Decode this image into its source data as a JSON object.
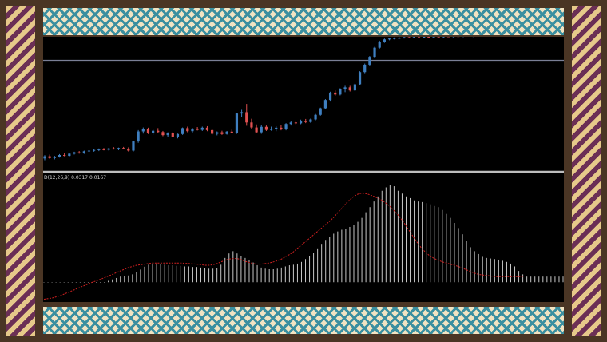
{
  "indicator": {
    "label_prefix": "D(",
    "params": "12,26,9",
    "macd_value": "0.0317",
    "signal_value": "0.0167"
  },
  "chart_data": {
    "type": "candlestick",
    "price": {
      "up_color": "#3f7fc0",
      "down_color": "#e05050",
      "candles": [
        [
          100,
          101.5,
          99.2,
          101
        ],
        [
          101,
          101.8,
          99.8,
          100.2
        ],
        [
          100.2,
          101.2,
          99.6,
          100.8
        ],
        [
          100.8,
          102,
          100.4,
          101.6
        ],
        [
          101.6,
          102.4,
          101,
          101.2
        ],
        [
          101.2,
          102.6,
          100.9,
          102.2
        ],
        [
          102.2,
          103.1,
          101.8,
          102.8
        ],
        [
          102.8,
          103.4,
          102.2,
          102.5
        ],
        [
          102.5,
          103.6,
          102.1,
          103.3
        ],
        [
          103.3,
          104,
          102.9,
          103.6
        ],
        [
          103.6,
          104.3,
          103.1,
          103.9
        ],
        [
          103.9,
          104.6,
          103.4,
          104.2
        ],
        [
          104.2,
          104.8,
          103.7,
          104
        ],
        [
          104,
          104.9,
          103.6,
          104.6
        ],
        [
          104.6,
          105.2,
          104.1,
          104.4
        ],
        [
          104.4,
          105,
          103.8,
          104.8
        ],
        [
          104.8,
          105.3,
          104.2,
          104.5
        ],
        [
          104.5,
          105.1,
          103.2,
          103.6
        ],
        [
          103.6,
          108.2,
          103.2,
          107.8
        ],
        [
          107.8,
          113,
          107.2,
          112.4
        ],
        [
          112.4,
          114.2,
          111.4,
          113.5
        ],
        [
          113.5,
          114.1,
          111.2,
          111.8
        ],
        [
          111.8,
          113.2,
          110.9,
          112.7
        ],
        [
          112.7,
          113.9,
          111.7,
          112.1
        ],
        [
          112.1,
          112.6,
          110.2,
          110.7
        ],
        [
          110.7,
          112,
          109.9,
          111.5
        ],
        [
          111.5,
          112.1,
          109.7,
          110
        ],
        [
          110,
          111.4,
          109.2,
          111.2
        ],
        [
          111.2,
          114.2,
          110.8,
          113.9
        ],
        [
          113.9,
          114.6,
          112,
          112.5
        ],
        [
          112.5,
          114,
          111.9,
          113.7
        ],
        [
          113.7,
          114.4,
          112.8,
          113.1
        ],
        [
          113.1,
          114.6,
          112.6,
          114.1
        ],
        [
          114.1,
          114.8,
          112.5,
          113
        ],
        [
          113,
          113.4,
          110.9,
          111.3
        ],
        [
          111.3,
          112.4,
          110.6,
          112
        ],
        [
          112,
          112.7,
          110.8,
          111.2
        ],
        [
          111.2,
          112.6,
          110.9,
          112.3
        ],
        [
          112.3,
          113.2,
          111.5,
          111.7
        ],
        [
          111.7,
          121,
          111.3,
          120.6
        ],
        [
          120.6,
          122.3,
          119.1,
          121.2
        ],
        [
          121.2,
          125,
          115,
          116.5
        ],
        [
          116.5,
          118.2,
          113.5,
          114.2
        ],
        [
          114.2,
          115.6,
          111.5,
          112
        ],
        [
          112,
          115.3,
          111.3,
          114.5
        ],
        [
          114.5,
          115.1,
          112.6,
          113.1
        ],
        [
          113.1,
          114.6,
          112.7,
          113.5
        ],
        [
          113.5,
          114.8,
          112.5,
          114.1
        ],
        [
          114.1,
          115.2,
          112.9,
          113.3
        ],
        [
          113.3,
          116.2,
          112.9,
          115.8
        ],
        [
          115.8,
          117.2,
          115.1,
          116.5
        ],
        [
          116.5,
          117.4,
          115.5,
          116.1
        ],
        [
          116.1,
          117.8,
          115.7,
          117.3
        ],
        [
          117.3,
          118.1,
          116.2,
          116.7
        ],
        [
          116.7,
          118.3,
          116.3,
          117.9
        ],
        [
          117.9,
          120.4,
          117.5,
          120
        ],
        [
          120,
          123.3,
          119.6,
          123
        ],
        [
          123,
          127.2,
          122.6,
          126.8
        ],
        [
          126.8,
          130.6,
          126.1,
          130.2
        ],
        [
          130.2,
          131.2,
          128.7,
          129.3
        ],
        [
          129.3,
          132.2,
          128.9,
          131.8
        ],
        [
          131.8,
          133.3,
          130.4,
          132.6
        ],
        [
          132.6,
          133.3,
          130.7,
          131.2
        ],
        [
          131.2,
          134.4,
          130.9,
          134
        ],
        [
          134,
          140,
          133.6,
          139.6
        ],
        [
          139.6,
          143.5,
          139.1,
          143
        ],
        [
          143,
          147,
          142.6,
          146.6
        ],
        [
          146.6,
          151.2,
          146.2,
          150.8
        ],
        [
          150.8,
          154,
          150.4,
          153.6
        ],
        [
          153.6,
          155,
          153,
          154.6
        ],
        [
          154.6,
          155.3,
          154.2,
          155
        ],
        [
          155,
          155.5,
          154.6,
          155.2
        ],
        [
          155.2,
          155.6,
          154.9,
          155.3
        ],
        [
          155.3,
          155.9,
          155,
          155.6
        ],
        [
          155.6,
          156,
          155.3,
          155.4
        ],
        [
          155.4,
          155.9,
          155.1,
          155.7
        ],
        [
          155.7,
          156.1,
          155.4,
          155.5
        ],
        [
          155.5,
          156,
          155.2,
          155.8
        ],
        [
          155.8,
          156.2,
          155.5,
          155.6
        ],
        [
          155.6,
          156.1,
          155.3,
          155.9
        ],
        [
          155.9,
          156.3,
          155.6,
          155.7
        ],
        [
          155.7,
          156.2,
          155.4,
          156
        ],
        [
          156,
          156.4,
          155.7,
          155.8
        ],
        [
          155.8,
          156.3,
          155.5,
          156.1
        ],
        [
          156.1,
          156.5,
          155.8,
          155.9
        ],
        [
          155.9,
          156.4,
          155.6,
          156.2
        ],
        [
          156.2,
          156.6,
          155.9,
          156
        ],
        [
          156,
          156.5,
          155.7,
          156.3
        ],
        [
          156.3,
          156.7,
          156,
          156.1
        ],
        [
          156.1,
          156.6,
          155.8,
          156.4
        ],
        [
          156.4,
          156.8,
          156.1,
          156.2
        ],
        [
          156.2,
          156.7,
          155.9,
          156.5
        ],
        [
          156.5,
          156.9,
          156.2,
          156.3
        ],
        [
          156.3,
          156.8,
          156,
          156.6
        ],
        [
          156.6,
          157,
          156.3,
          156.4
        ],
        [
          156.4,
          156.9,
          156.1,
          156.7
        ],
        [
          156.7,
          157.1,
          156.4,
          156.5
        ],
        [
          156.5,
          157,
          156.2,
          156.8
        ]
      ],
      "horizontal_line": 145,
      "ylim": [
        95,
        155.8
      ]
    },
    "macd": {
      "histogram_color": "#c8c8c8",
      "signal_color": "#d02020",
      "histogram": [
        0,
        0,
        0,
        0,
        0,
        0,
        0,
        0,
        0,
        0,
        0,
        0,
        0,
        0,
        0,
        0,
        0.05,
        0.1,
        0.15,
        0.2,
        0.22,
        0.24,
        0.28,
        0.35,
        0.45,
        0.55,
        0.62,
        0.66,
        0.66,
        0.64,
        0.62,
        0.6,
        0.6,
        0.58,
        0.58,
        0.56,
        0.56,
        0.54,
        0.54,
        0.52,
        0.5,
        0.48,
        0.48,
        0.5,
        0.62,
        0.86,
        1.02,
        1.1,
        1.02,
        0.92,
        0.86,
        0.8,
        0.7,
        0.6,
        0.52,
        0.48,
        0.46,
        0.46,
        0.48,
        0.52,
        0.56,
        0.6,
        0.62,
        0.66,
        0.72,
        0.82,
        0.92,
        1.05,
        1.2,
        1.36,
        1.5,
        1.62,
        1.72,
        1.8,
        1.86,
        1.9,
        1.96,
        2.04,
        2.14,
        2.28,
        2.48,
        2.66,
        2.86,
        3.04,
        3.24,
        3.36,
        3.44,
        3.4,
        3.24,
        3.14,
        3.04,
        2.98,
        2.9,
        2.86,
        2.84,
        2.8,
        2.76,
        2.7,
        2.66,
        2.56,
        2.42,
        2.28,
        2.1,
        1.92,
        1.7,
        1.46,
        1.24,
        1.1,
        1,
        0.9,
        0.86,
        0.84,
        0.82,
        0.8,
        0.76,
        0.72,
        0.66,
        0.56,
        0.4,
        0.28,
        0.2,
        0.2,
        0.2,
        0.2,
        0.2,
        0.2,
        0.2,
        0.2,
        0.2,
        0.2
      ],
      "signal": [
        -0.6,
        -0.58,
        -0.56,
        -0.52,
        -0.48,
        -0.42,
        -0.36,
        -0.3,
        -0.24,
        -0.18,
        -0.12,
        -0.06,
        0,
        0.05,
        0.1,
        0.16,
        0.22,
        0.28,
        0.34,
        0.4,
        0.46,
        0.52,
        0.56,
        0.6,
        0.62,
        0.64,
        0.66,
        0.68,
        0.68,
        0.68,
        0.68,
        0.68,
        0.68,
        0.68,
        0.68,
        0.67,
        0.66,
        0.65,
        0.64,
        0.62,
        0.6,
        0.6,
        0.62,
        0.66,
        0.72,
        0.78,
        0.82,
        0.84,
        0.84,
        0.8,
        0.74,
        0.7,
        0.66,
        0.64,
        0.64,
        0.66,
        0.68,
        0.72,
        0.76,
        0.82,
        0.9,
        0.98,
        1.08,
        1.2,
        1.32,
        1.44,
        1.56,
        1.68,
        1.8,
        1.92,
        2.04,
        2.16,
        2.3,
        2.46,
        2.62,
        2.78,
        2.92,
        3.04,
        3.12,
        3.16,
        3.14,
        3.1,
        3.04,
        2.98,
        2.9,
        2.8,
        2.68,
        2.54,
        2.38,
        2.2,
        2,
        1.78,
        1.56,
        1.36,
        1.18,
        1.04,
        0.92,
        0.84,
        0.78,
        0.72,
        0.68,
        0.64,
        0.6,
        0.56,
        0.5,
        0.44,
        0.38,
        0.32,
        0.28,
        0.26,
        0.24,
        0.22,
        0.2,
        0.2,
        0.2,
        0.2,
        0.2,
        0.2,
        0.2,
        0.2
      ],
      "ylim": [
        -0.7,
        3.6
      ]
    }
  }
}
